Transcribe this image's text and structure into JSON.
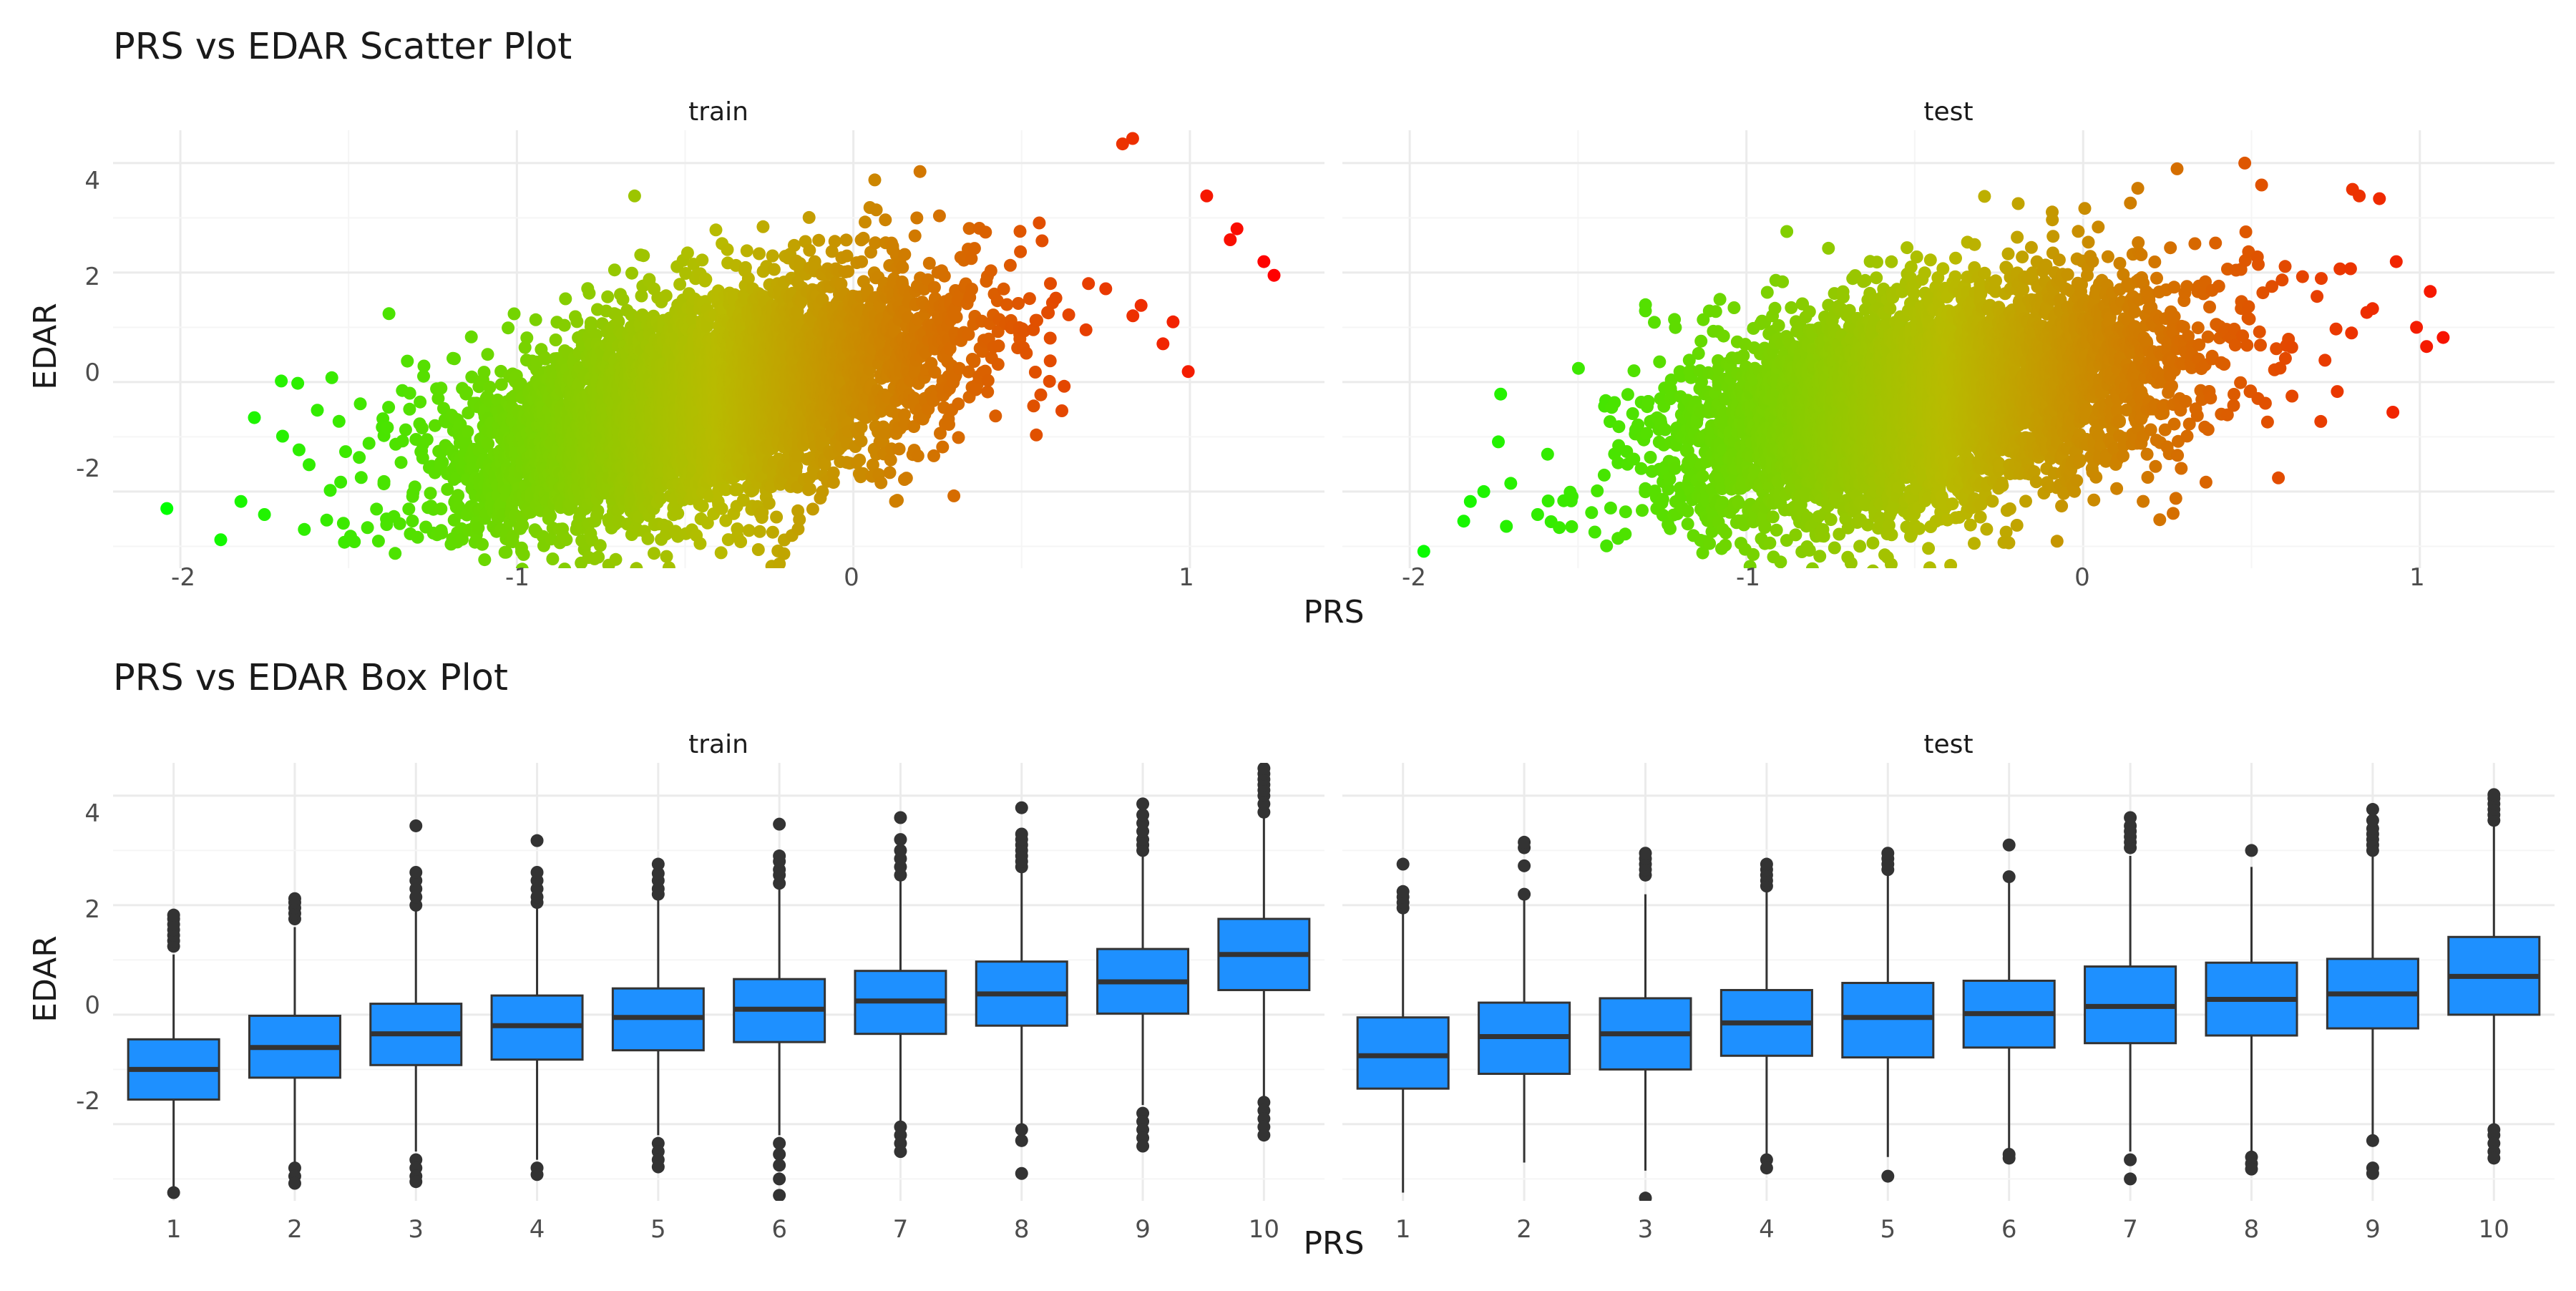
{
  "colors": {
    "grid_major": "#ebebeb",
    "grid_minor": "#f5f5f5",
    "text_dark": "#1a1a1a",
    "text_axis": "#4d4d4d",
    "box_fill": "#1e90ff",
    "box_line": "#333333",
    "gradient_low": "#00ff00",
    "gradient_mid": "#b8bb00",
    "gradient_high": "#ff0000"
  },
  "chart_data": [
    {
      "type": "scatter",
      "title": "PRS vs EDAR Scatter Plot",
      "xlabel": "PRS",
      "ylabel": "EDAR",
      "facets": [
        "train",
        "test"
      ],
      "xlim": [
        -2.2,
        1.4
      ],
      "ylim": [
        -3.4,
        4.6
      ],
      "x_ticks": [
        -2,
        -1,
        0,
        1
      ],
      "x_tick_labels": [
        "-2",
        "-1",
        "0",
        "1"
      ],
      "y_ticks": [
        -2,
        0,
        2,
        4
      ],
      "y_tick_labels": [
        "-2",
        "0",
        "2",
        "4"
      ],
      "color_scale": "gradient green-to-red by PRS",
      "grid": true,
      "legend": "none",
      "series": [
        {
          "facet": "train",
          "trend": {
            "slope": 1.55,
            "intercept": 0.33,
            "x_mean": -0.45,
            "x_sd": 0.37,
            "resid_sd": 0.95
          },
          "outliers": [
            [
              -2.04,
              -2.31
            ],
            [
              -1.88,
              -2.88
            ],
            [
              -1.82,
              -2.18
            ],
            [
              -1.78,
              -0.65
            ],
            [
              -1.75,
              -2.42
            ],
            [
              -1.7,
              0.02
            ],
            [
              -1.55,
              0.08
            ],
            [
              1.22,
              2.2
            ],
            [
              1.25,
              1.95
            ],
            [
              1.14,
              2.8
            ],
            [
              0.83,
              4.45
            ],
            [
              0.8,
              4.35
            ],
            [
              0.95,
              1.1
            ],
            [
              0.92,
              0.7
            ],
            [
              1.05,
              3.4
            ],
            [
              1.12,
              2.6
            ],
            [
              -0.22,
              -3.32
            ],
            [
              -0.98,
              -3.15
            ],
            [
              -0.65,
              3.4
            ],
            [
              -1.38,
              1.25
            ]
          ]
        },
        {
          "facet": "test",
          "trend": {
            "slope": 1.05,
            "intercept": 0.15,
            "x_mean": -0.45,
            "x_sd": 0.37,
            "resid_sd": 0.95
          },
          "outliers": [
            [
              -1.82,
              -2.18
            ],
            [
              -1.78,
              -2.0
            ],
            [
              -1.73,
              -0.22
            ],
            [
              -1.7,
              -1.85
            ],
            [
              -1.62,
              -2.42
            ],
            [
              -1.58,
              -2.55
            ],
            [
              -1.3,
              1.3
            ],
            [
              -0.98,
              -3.15
            ],
            [
              -0.57,
              -3.33
            ],
            [
              0.99,
              1.0
            ],
            [
              1.02,
              0.65
            ],
            [
              0.93,
              2.2
            ],
            [
              0.92,
              -0.55
            ],
            [
              0.82,
              3.4
            ],
            [
              0.8,
              3.52
            ],
            [
              0.88,
              3.35
            ],
            [
              0.53,
              3.6
            ],
            [
              0.48,
              4.0
            ],
            [
              -0.88,
              2.75
            ],
            [
              0.58,
              -1.75
            ]
          ]
        }
      ]
    },
    {
      "type": "box",
      "title": "PRS vs EDAR Box Plot",
      "xlabel": "PRS",
      "ylabel": "EDAR",
      "facets": [
        "train",
        "test"
      ],
      "categories": [
        "1",
        "2",
        "3",
        "4",
        "5",
        "6",
        "7",
        "8",
        "9",
        "10"
      ],
      "ylim": [
        -3.4,
        4.6
      ],
      "y_ticks": [
        -2,
        0,
        2,
        4
      ],
      "y_tick_labels": [
        "-2",
        "0",
        "2",
        "4"
      ],
      "grid": true,
      "legend": "none",
      "series": [
        {
          "facet": "train",
          "boxes": [
            {
              "q1": -1.55,
              "median": -1.0,
              "q3": -0.45,
              "lo": -3.2,
              "hi": 1.1,
              "outliers": [
                -3.25,
                1.25,
                1.35,
                1.45,
                1.55,
                1.65,
                1.75,
                1.82
              ]
            },
            {
              "q1": -1.15,
              "median": -0.6,
              "q3": -0.02,
              "lo": -2.7,
              "hi": 1.6,
              "outliers": [
                -2.8,
                -2.95,
                -3.08,
                1.75,
                1.85,
                1.95,
                2.05,
                2.12
              ]
            },
            {
              "q1": -0.92,
              "median": -0.35,
              "q3": 0.2,
              "lo": -2.5,
              "hi": 1.9,
              "outliers": [
                -2.65,
                -2.8,
                -2.95,
                -3.05,
                2.0,
                2.15,
                2.3,
                2.45,
                2.6,
                3.45
              ]
            },
            {
              "q1": -0.82,
              "median": -0.2,
              "q3": 0.35,
              "lo": -2.65,
              "hi": 1.95,
              "outliers": [
                -2.8,
                -2.92,
                2.05,
                2.15,
                2.3,
                2.45,
                2.6,
                3.18
              ]
            },
            {
              "q1": -0.65,
              "median": -0.05,
              "q3": 0.48,
              "lo": -2.2,
              "hi": 2.1,
              "outliers": [
                -2.35,
                -2.5,
                -2.65,
                -2.78,
                2.2,
                2.3,
                2.45,
                2.58,
                2.75
              ]
            },
            {
              "q1": -0.5,
              "median": 0.1,
              "q3": 0.65,
              "lo": -2.2,
              "hi": 2.3,
              "outliers": [
                -2.35,
                -2.55,
                -2.75,
                -3.0,
                -3.3,
                2.4,
                2.55,
                2.65,
                2.8,
                2.9,
                3.48
              ]
            },
            {
              "q1": -0.35,
              "median": 0.25,
              "q3": 0.8,
              "lo": -1.95,
              "hi": 2.45,
              "outliers": [
                -2.05,
                -2.2,
                -2.35,
                -2.5,
                2.55,
                2.7,
                2.85,
                3.0,
                3.2,
                3.6
              ]
            },
            {
              "q1": -0.2,
              "median": 0.38,
              "q3": 0.97,
              "lo": -2.0,
              "hi": 2.6,
              "outliers": [
                -2.1,
                -2.3,
                -2.9,
                2.7,
                2.8,
                2.9,
                3.0,
                3.1,
                3.2,
                3.3,
                3.78
              ]
            },
            {
              "q1": 0.02,
              "median": 0.6,
              "q3": 1.2,
              "lo": -1.65,
              "hi": 2.9,
              "outliers": [
                -1.8,
                -1.95,
                -2.1,
                -2.25,
                -2.4,
                3.0,
                3.1,
                3.2,
                3.35,
                3.5,
                3.65,
                3.85
              ]
            },
            {
              "q1": 0.45,
              "median": 1.1,
              "q3": 1.75,
              "lo": -1.5,
              "hi": 3.6,
              "outliers": [
                -1.6,
                -1.75,
                -1.9,
                -2.05,
                -2.2,
                3.7,
                3.85,
                4.0,
                4.1,
                4.2,
                4.3,
                4.4,
                4.5
              ]
            }
          ]
        },
        {
          "facet": "test",
          "boxes": [
            {
              "q1": -1.35,
              "median": -0.75,
              "q3": -0.05,
              "lo": -3.25,
              "hi": 1.85,
              "outliers": [
                1.95,
                2.05,
                2.15,
                2.25,
                2.75
              ]
            },
            {
              "q1": -1.08,
              "median": -0.4,
              "q3": 0.22,
              "lo": -2.7,
              "hi": 2.1,
              "outliers": [
                2.2,
                2.72,
                3.05,
                3.15
              ]
            },
            {
              "q1": -1.0,
              "median": -0.35,
              "q3": 0.3,
              "lo": -2.85,
              "hi": 2.2,
              "outliers": [
                -3.35,
                2.55,
                2.65,
                2.75,
                2.85,
                2.95
              ]
            },
            {
              "q1": -0.75,
              "median": -0.15,
              "q3": 0.45,
              "lo": -2.55,
              "hi": 2.25,
              "outliers": [
                -2.65,
                -2.8,
                2.35,
                2.45,
                2.55,
                2.65,
                2.75
              ]
            },
            {
              "q1": -0.78,
              "median": -0.05,
              "q3": 0.58,
              "lo": -2.6,
              "hi": 2.55,
              "outliers": [
                -2.95,
                2.65,
                2.75,
                2.85,
                2.95
              ]
            },
            {
              "q1": -0.6,
              "median": 0.02,
              "q3": 0.62,
              "lo": -2.5,
              "hi": 2.45,
              "outliers": [
                -2.55,
                -2.62,
                2.52,
                3.1
              ]
            },
            {
              "q1": -0.52,
              "median": 0.15,
              "q3": 0.88,
              "lo": -2.5,
              "hi": 2.9,
              "outliers": [
                -2.65,
                -3.0,
                3.05,
                3.15,
                3.25,
                3.35,
                3.45,
                3.6
              ]
            },
            {
              "q1": -0.38,
              "median": 0.28,
              "q3": 0.95,
              "lo": -2.5,
              "hi": 2.7,
              "outliers": [
                -2.6,
                -2.72,
                -2.82,
                3.0
              ]
            },
            {
              "q1": -0.25,
              "median": 0.38,
              "q3": 1.02,
              "lo": -2.2,
              "hi": 2.9,
              "outliers": [
                -2.3,
                -2.8,
                -2.9,
                3.0,
                3.1,
                3.2,
                3.3,
                3.4,
                3.55,
                3.75
              ]
            },
            {
              "q1": 0.0,
              "median": 0.7,
              "q3": 1.42,
              "lo": -2.0,
              "hi": 3.45,
              "outliers": [
                -2.1,
                -2.2,
                -2.35,
                -2.5,
                -2.62,
                3.55,
                3.65,
                3.75,
                3.85,
                3.95,
                4.02
              ]
            }
          ]
        }
      ]
    }
  ]
}
